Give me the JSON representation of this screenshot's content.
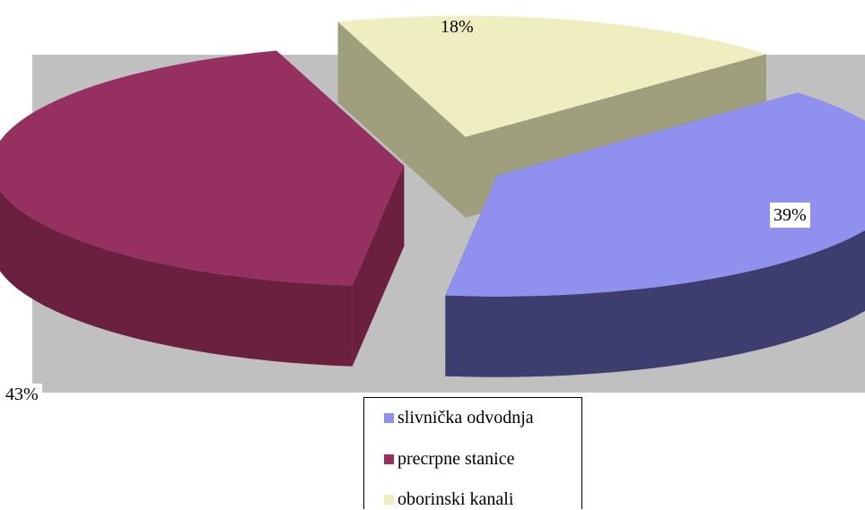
{
  "chart_data": {
    "type": "pie",
    "title": "",
    "style": "3d-exploded",
    "legend_position": "bottom",
    "slices": [
      {
        "label": "slivnička odvodnja",
        "value": 39,
        "display": "39%",
        "color": "#9090EE",
        "side_color": "#3D3D70"
      },
      {
        "label": "precrpne stanice",
        "value": 43,
        "display": "43%",
        "color": "#953060",
        "side_color": "#6B2040"
      },
      {
        "label": "oborinski kanali",
        "value": 18,
        "display": "18%",
        "color": "#EEEEC0",
        "side_color": "#9F9F7E"
      }
    ]
  },
  "plot_area_color": "#C0C0C0"
}
